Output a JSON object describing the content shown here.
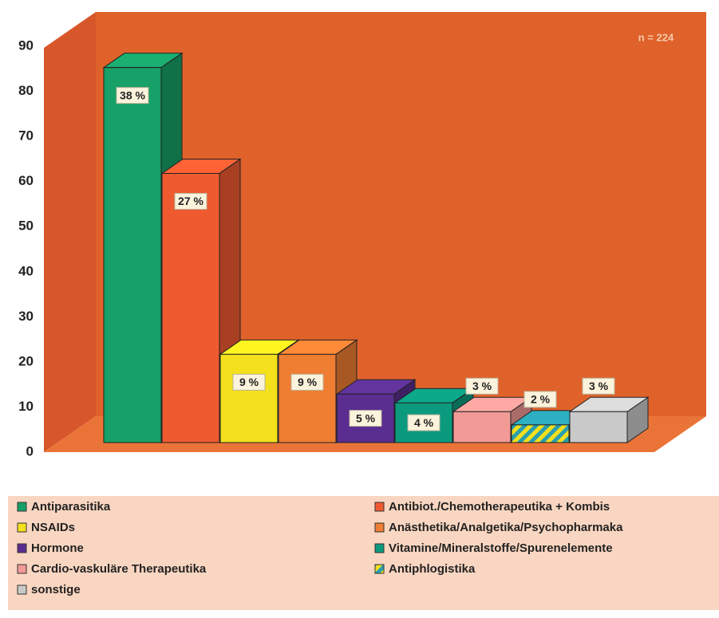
{
  "chart_data": {
    "type": "bar",
    "annotation": "n = 224",
    "categories": [
      "Antiparasitika",
      "Antibiot./Chemotherapeutika + Kombis",
      "NSAIDs",
      "Anästhetika/Analgetika/Psychopharmaka",
      "Hormone",
      "Vitamine/Mineralstoffe/Spurenelemente",
      "Cardio-vaskuläre Therapeutika",
      "Antiphlogistika",
      "sonstige"
    ],
    "values": [
      85,
      61,
      20,
      20,
      11,
      9,
      7,
      4,
      7
    ],
    "value_labels": [
      "38 %",
      "27 %",
      "9 %",
      "9 %",
      "5 %",
      "4 %",
      "3 %",
      "2 %",
      "3 %"
    ],
    "colors": [
      "#17a067",
      "#f05a30",
      "#f4e01c",
      "#ef7d32",
      "#5a2e90",
      "#0b9a7e",
      "#f19a96",
      "#2a9fb0",
      "#c9c9c9"
    ],
    "hatched": [
      false,
      false,
      false,
      false,
      false,
      false,
      false,
      true,
      false
    ],
    "ylim": [
      0,
      90
    ],
    "yticks": [
      0,
      10,
      20,
      30,
      40,
      50,
      60,
      70,
      80,
      90
    ]
  }
}
